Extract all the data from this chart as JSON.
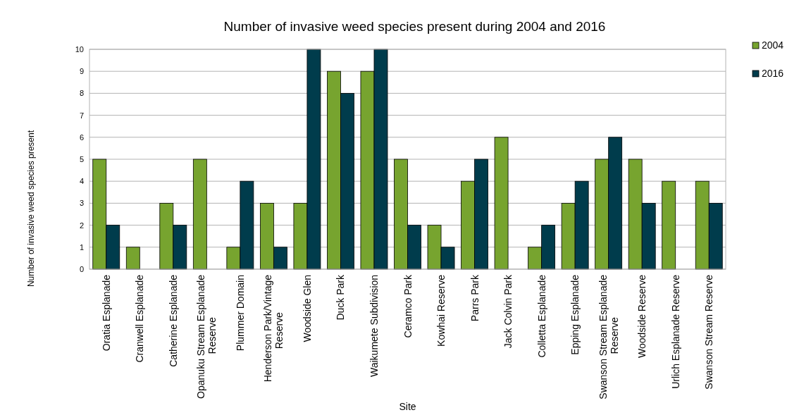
{
  "chart_data": {
    "type": "bar",
    "title": "Number of invasive weed species present during 2004 and 2016",
    "xlabel": "Site",
    "ylabel": "Number  of invasive weed species present",
    "categories": [
      "Oratia Esplanade",
      "Cranwell Esplanade",
      "Catherine Esplanade",
      "Opanuku Stream Esplanade Reserve",
      "Plummer Domain",
      "Henderson Park/Vintage Reserve",
      "Woodside Glen",
      "Duck Park",
      "Waikumete Subdivision",
      "Ceramco Park",
      "Kowhai Reserve",
      "Parrs Park",
      "Jack Colvin Park",
      "Colletta Esplanade",
      "Epping Esplanade",
      "Swanson Stream Esplanade Reserve",
      "Woodside Reserve",
      "Urlich Esplanade Reserve",
      "Swanson Stream Reserve"
    ],
    "series": [
      {
        "name": "2004",
        "color": "#77a42f",
        "values": [
          5,
          1,
          3,
          5,
          1,
          3,
          3,
          9,
          9,
          5,
          2,
          4,
          6,
          1,
          3,
          5,
          5,
          4,
          4
        ]
      },
      {
        "name": "2016",
        "color": "#003c4c",
        "values": [
          2,
          0,
          2,
          0,
          4,
          1,
          10,
          8,
          10,
          2,
          1,
          5,
          0,
          2,
          4,
          6,
          3,
          0,
          3
        ]
      }
    ],
    "ylim": [
      0,
      10
    ],
    "yticks": [
      0,
      1,
      2,
      3,
      4,
      5,
      6,
      7,
      8,
      9,
      10
    ],
    "grid": "y",
    "legend": "top right"
  }
}
